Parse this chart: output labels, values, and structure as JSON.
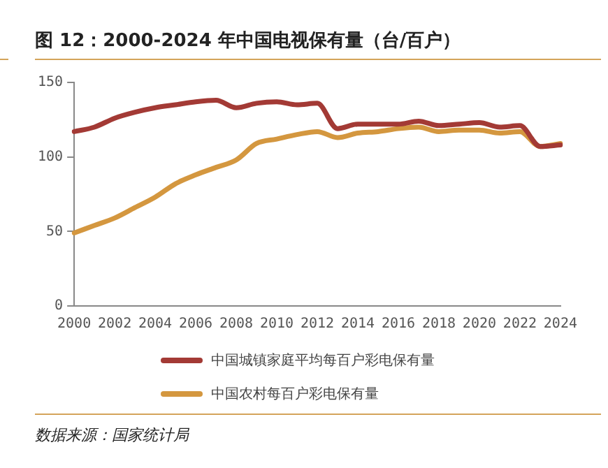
{
  "chart_data": {
    "type": "line",
    "title": "图 12：2000-2024 年中国电视保有量（台/百户）",
    "categories": [
      "2000",
      null,
      "2002",
      null,
      "2004",
      null,
      "2006",
      null,
      "2008",
      null,
      "2010",
      null,
      "2012",
      null,
      "2014",
      null,
      "2016",
      null,
      "2018",
      null,
      "2020",
      null,
      "2022",
      null,
      "2024"
    ],
    "series": [
      {
        "name": "中国城镇家庭平均每百户彩电保有量",
        "color": "#a33a35",
        "values": [
          117,
          120,
          126,
          130,
          133,
          135,
          137,
          138,
          133,
          136,
          137,
          135,
          136,
          119,
          122,
          122,
          122,
          124,
          121,
          122,
          123,
          120,
          121,
          107,
          108
        ]
      },
      {
        "name": "中国农村每百户彩电保有量",
        "color": "#d4973f",
        "values": [
          49,
          54,
          59,
          66,
          73,
          82,
          88,
          93,
          98,
          109,
          112,
          115,
          117,
          113,
          116,
          117,
          119,
          120,
          117,
          118,
          118,
          116,
          117,
          107,
          109
        ]
      }
    ],
    "ylim": [
      0,
      150
    ],
    "yticks": [
      0,
      50,
      100,
      150
    ],
    "grid": false,
    "legend": "bottom",
    "marker": "none",
    "line_style": "solid",
    "annotations": [
      "数据来源：国家统计局"
    ]
  }
}
